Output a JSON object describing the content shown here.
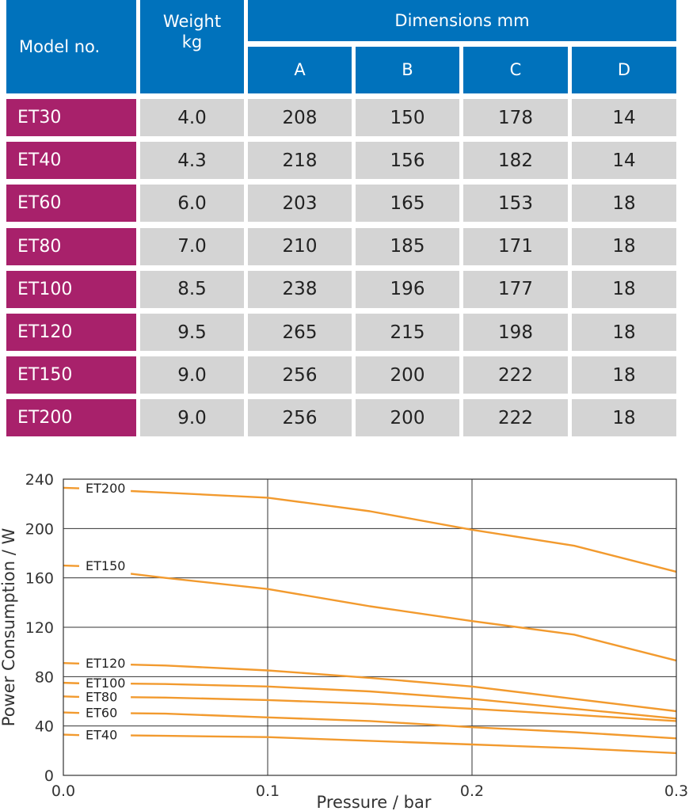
{
  "table": {
    "header": {
      "model": "Model no.",
      "weight": "Weight\nkg",
      "dimensions": "Dimensions mm",
      "dims": [
        "A",
        "B",
        "C",
        "D"
      ]
    },
    "rows": [
      {
        "model": "ET30",
        "cells": [
          "4.0",
          "208",
          "150",
          "178",
          "14"
        ]
      },
      {
        "model": "ET40",
        "cells": [
          "4.3",
          "218",
          "156",
          "182",
          "14"
        ]
      },
      {
        "model": "ET60",
        "cells": [
          "6.0",
          "203",
          "165",
          "153",
          "18"
        ]
      },
      {
        "model": "ET80",
        "cells": [
          "7.0",
          "210",
          "185",
          "171",
          "18"
        ]
      },
      {
        "model": "ET100",
        "cells": [
          "8.5",
          "238",
          "196",
          "177",
          "18"
        ]
      },
      {
        "model": "ET120",
        "cells": [
          "9.5",
          "265",
          "215",
          "198",
          "18"
        ]
      },
      {
        "model": "ET150",
        "cells": [
          "9.0",
          "256",
          "200",
          "222",
          "18"
        ]
      },
      {
        "model": "ET200",
        "cells": [
          "9.0",
          "256",
          "200",
          "222",
          "18"
        ]
      }
    ]
  },
  "colors": {
    "header_blue": "#0072bc",
    "model_magenta": "#a8216b",
    "cell_gray": "#d4d4d4",
    "line_orange": "#f29a2e"
  },
  "chart_data": {
    "type": "line",
    "xlabel": "Pressure / bar",
    "ylabel": "Power Consumption / W",
    "xlim": [
      0.0,
      0.3
    ],
    "ylim": [
      0,
      240
    ],
    "xticks": [
      "0.0",
      "0.1",
      "0.2",
      "0.3"
    ],
    "yticks": [
      "0",
      "40",
      "80",
      "120",
      "160",
      "200",
      "240"
    ],
    "xtick_values": [
      0.0,
      0.1,
      0.2,
      0.3
    ],
    "ytick_values": [
      0,
      40,
      80,
      120,
      160,
      200,
      240
    ],
    "grid": true,
    "series": [
      {
        "name": "ET200",
        "x": [
          0.0,
          0.05,
          0.1,
          0.15,
          0.2,
          0.25,
          0.3
        ],
        "y": [
          233,
          229,
          225,
          214,
          199,
          186,
          165
        ]
      },
      {
        "name": "ET150",
        "x": [
          0.0,
          0.05,
          0.1,
          0.15,
          0.2,
          0.25,
          0.3
        ],
        "y": [
          170,
          160,
          151,
          137,
          125,
          114,
          93
        ]
      },
      {
        "name": "ET120",
        "x": [
          0.0,
          0.05,
          0.1,
          0.15,
          0.2,
          0.25,
          0.3
        ],
        "y": [
          91,
          89,
          85,
          79,
          72,
          62,
          52
        ]
      },
      {
        "name": "ET100",
        "x": [
          0.0,
          0.05,
          0.1,
          0.15,
          0.2,
          0.25,
          0.3
        ],
        "y": [
          75,
          74,
          72,
          68,
          62,
          54,
          46
        ]
      },
      {
        "name": "ET80",
        "x": [
          0.0,
          0.05,
          0.1,
          0.15,
          0.2,
          0.25,
          0.3
        ],
        "y": [
          64,
          63,
          61,
          58,
          54,
          49,
          44
        ]
      },
      {
        "name": "ET60",
        "x": [
          0.0,
          0.05,
          0.1,
          0.15,
          0.2,
          0.25,
          0.3
        ],
        "y": [
          51,
          50,
          47,
          44,
          39,
          35,
          30
        ]
      },
      {
        "name": "ET40",
        "x": [
          0.0,
          0.05,
          0.1,
          0.15,
          0.2,
          0.25,
          0.3
        ],
        "y": [
          33,
          32,
          31,
          28,
          25,
          22,
          18
        ]
      }
    ]
  }
}
